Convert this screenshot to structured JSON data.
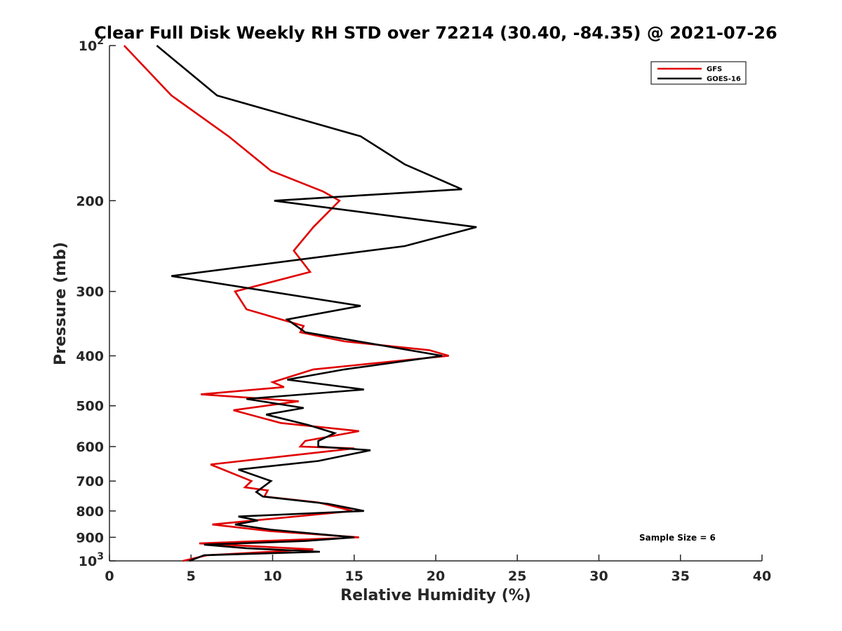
{
  "chart_data": {
    "type": "line",
    "title": "Clear Full Disk Weekly RH STD over 72214 (30.40, -84.35) @ 2021-07-26",
    "xlabel": "Relative Humidity (%)",
    "ylabel": "Pressure (mb)",
    "xlim": [
      0,
      40
    ],
    "ylim": [
      100,
      1000
    ],
    "y_scale": "log",
    "y_reversed": true,
    "grid": false,
    "legend_position": "top-right",
    "x_ticks": [
      0,
      5,
      10,
      15,
      20,
      25,
      30,
      35,
      40
    ],
    "x_tick_labels": [
      "0",
      "5",
      "10",
      "15",
      "20",
      "25",
      "30",
      "35",
      "40"
    ],
    "y_ticks": [
      100,
      200,
      300,
      400,
      500,
      600,
      700,
      800,
      900,
      1000
    ],
    "y_tick_labels": [
      {
        "base": "10",
        "exp": "2"
      },
      {
        "base": "200",
        "exp": ""
      },
      {
        "base": "300",
        "exp": ""
      },
      {
        "base": "400",
        "exp": ""
      },
      {
        "base": "500",
        "exp": ""
      },
      {
        "base": "600",
        "exp": ""
      },
      {
        "base": "700",
        "exp": ""
      },
      {
        "base": "800",
        "exp": ""
      },
      {
        "base": "900",
        "exp": ""
      },
      {
        "base": "10",
        "exp": "3"
      }
    ],
    "annotation": "Sample Size = 6",
    "series": [
      {
        "name": "GFS",
        "color": "#e00000",
        "points": [
          {
            "rh": 0.9,
            "p": 100
          },
          {
            "rh": 3.8,
            "p": 125
          },
          {
            "rh": 7.3,
            "p": 150
          },
          {
            "rh": 9.9,
            "p": 175
          },
          {
            "rh": 13.1,
            "p": 192
          },
          {
            "rh": 14.1,
            "p": 200
          },
          {
            "rh": 12.5,
            "p": 225
          },
          {
            "rh": 11.3,
            "p": 250
          },
          {
            "rh": 12.3,
            "p": 275
          },
          {
            "rh": 7.7,
            "p": 300
          },
          {
            "rh": 8.4,
            "p": 325
          },
          {
            "rh": 11.9,
            "p": 350
          },
          {
            "rh": 11.7,
            "p": 360
          },
          {
            "rh": 14.4,
            "p": 375
          },
          {
            "rh": 19.6,
            "p": 390
          },
          {
            "rh": 20.8,
            "p": 400
          },
          {
            "rh": 12.5,
            "p": 425
          },
          {
            "rh": 10.0,
            "p": 450
          },
          {
            "rh": 10.7,
            "p": 460
          },
          {
            "rh": 5.6,
            "p": 475
          },
          {
            "rh": 11.6,
            "p": 490
          },
          {
            "rh": 7.6,
            "p": 510
          },
          {
            "rh": 10.5,
            "p": 540
          },
          {
            "rh": 15.3,
            "p": 560
          },
          {
            "rh": 12.0,
            "p": 585
          },
          {
            "rh": 11.7,
            "p": 600
          },
          {
            "rh": 15.0,
            "p": 605
          },
          {
            "rh": 6.2,
            "p": 650
          },
          {
            "rh": 8.7,
            "p": 700
          },
          {
            "rh": 8.3,
            "p": 720
          },
          {
            "rh": 9.7,
            "p": 730
          },
          {
            "rh": 9.5,
            "p": 750
          },
          {
            "rh": 12.8,
            "p": 770
          },
          {
            "rh": 14.9,
            "p": 800
          },
          {
            "rh": 6.3,
            "p": 850
          },
          {
            "rh": 9.8,
            "p": 875
          },
          {
            "rh": 15.3,
            "p": 900
          },
          {
            "rh": 5.5,
            "p": 925
          },
          {
            "rh": 12.5,
            "p": 950
          },
          {
            "rh": 6.0,
            "p": 975
          },
          {
            "rh": 4.5,
            "p": 1000
          }
        ]
      },
      {
        "name": "GOES-16",
        "color": "#000000",
        "points": [
          {
            "rh": 2.9,
            "p": 100
          },
          {
            "rh": 6.6,
            "p": 125
          },
          {
            "rh": 15.4,
            "p": 150
          },
          {
            "rh": 18.1,
            "p": 170
          },
          {
            "rh": 21.6,
            "p": 190
          },
          {
            "rh": 10.1,
            "p": 200
          },
          {
            "rh": 22.5,
            "p": 225
          },
          {
            "rh": 18.1,
            "p": 245
          },
          {
            "rh": 3.8,
            "p": 280
          },
          {
            "rh": 15.4,
            "p": 320
          },
          {
            "rh": 10.9,
            "p": 340
          },
          {
            "rh": 12.0,
            "p": 360
          },
          {
            "rh": 20.4,
            "p": 400
          },
          {
            "rh": 14.4,
            "p": 425
          },
          {
            "rh": 10.9,
            "p": 445
          },
          {
            "rh": 15.6,
            "p": 465
          },
          {
            "rh": 8.4,
            "p": 485
          },
          {
            "rh": 11.9,
            "p": 505
          },
          {
            "rh": 9.6,
            "p": 520
          },
          {
            "rh": 12.2,
            "p": 545
          },
          {
            "rh": 13.8,
            "p": 565
          },
          {
            "rh": 12.8,
            "p": 585
          },
          {
            "rh": 12.8,
            "p": 600
          },
          {
            "rh": 16.0,
            "p": 610
          },
          {
            "rh": 12.8,
            "p": 640
          },
          {
            "rh": 7.9,
            "p": 665
          },
          {
            "rh": 9.9,
            "p": 700
          },
          {
            "rh": 9.0,
            "p": 735
          },
          {
            "rh": 9.4,
            "p": 750
          },
          {
            "rh": 13.4,
            "p": 775
          },
          {
            "rh": 15.6,
            "p": 800
          },
          {
            "rh": 7.9,
            "p": 820
          },
          {
            "rh": 9.1,
            "p": 835
          },
          {
            "rh": 7.7,
            "p": 850
          },
          {
            "rh": 9.9,
            "p": 870
          },
          {
            "rh": 15.0,
            "p": 900
          },
          {
            "rh": 12.0,
            "p": 915
          },
          {
            "rh": 5.8,
            "p": 930
          },
          {
            "rh": 8.4,
            "p": 945
          },
          {
            "rh": 12.9,
            "p": 960
          },
          {
            "rh": 5.8,
            "p": 975
          },
          {
            "rh": 4.9,
            "p": 1000
          }
        ]
      }
    ]
  }
}
